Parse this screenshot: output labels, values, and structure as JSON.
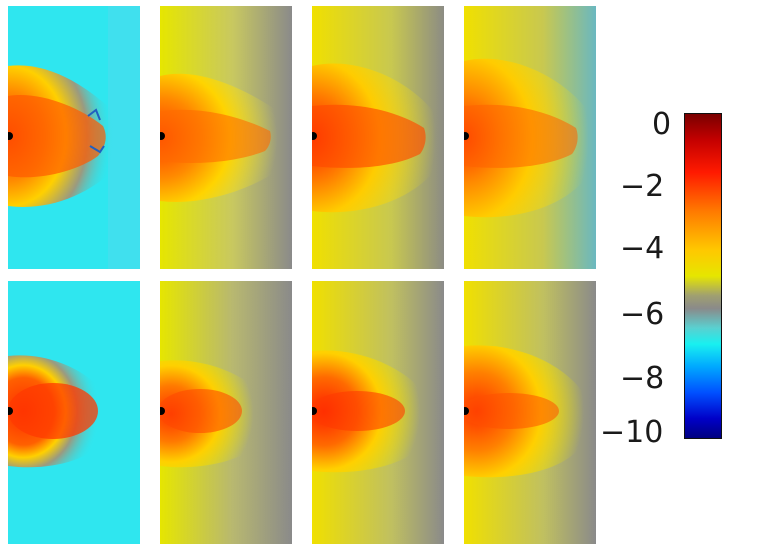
{
  "figure": {
    "rows": 2,
    "cols": 4,
    "colorbar": {
      "ticks": [
        "0",
        "−2",
        "−4",
        "−6",
        "−8",
        "−10"
      ],
      "colors": [
        "#7a0000",
        "#ff1a00",
        "#ffc800",
        "#8a8a8a",
        "#19f0f0",
        "#0050ff",
        "#000080"
      ]
    },
    "panels": [
      {
        "background": "#2fe6ef",
        "plume": "turbulent"
      },
      {
        "background": "#d8d84a",
        "plume": "turbulent"
      },
      {
        "background": "#d4d33a",
        "plume": "turbulent"
      },
      {
        "background": "#cfcf40",
        "plume": "turbulent"
      },
      {
        "background": "#2fe6ef",
        "plume": "smooth"
      },
      {
        "background": "#d6d648",
        "plume": "smooth"
      },
      {
        "background": "#d8d73c",
        "plume": "smooth"
      },
      {
        "background": "#d4d43e",
        "plume": "smooth"
      }
    ]
  }
}
